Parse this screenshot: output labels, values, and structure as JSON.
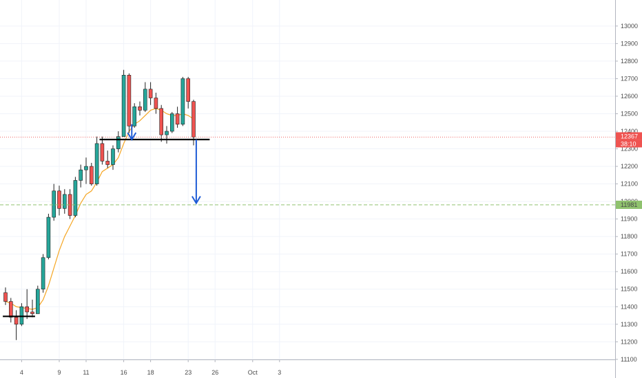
{
  "chart_data": {
    "type": "candlestick",
    "x_ticks": [
      {
        "label": "4",
        "index": 3
      },
      {
        "label": "9",
        "index": 10
      },
      {
        "label": "11",
        "index": 15
      },
      {
        "label": "16",
        "index": 22
      },
      {
        "label": "18",
        "index": 27
      },
      {
        "label": "23",
        "index": 34
      },
      {
        "label": "26",
        "index": 39
      },
      {
        "label": "Oct",
        "index": 46
      },
      {
        "label": "3",
        "index": 51
      }
    ],
    "y_ticks": [
      11100,
      11200,
      11300,
      11400,
      11500,
      11600,
      11700,
      11800,
      11900,
      12000,
      12100,
      12200,
      12300,
      12400,
      12500,
      12600,
      12700,
      12800,
      12900,
      13000
    ],
    "ylim": [
      11070,
      13070
    ],
    "candles": [
      {
        "o": 11480,
        "h": 11510,
        "l": 11410,
        "c": 11430
      },
      {
        "o": 11430,
        "h": 11450,
        "l": 11310,
        "c": 11340
      },
      {
        "o": 11340,
        "h": 11380,
        "l": 11210,
        "c": 11300
      },
      {
        "o": 11300,
        "h": 11420,
        "l": 11290,
        "c": 11400
      },
      {
        "o": 11400,
        "h": 11500,
        "l": 11330,
        "c": 11370
      },
      {
        "o": 11370,
        "h": 11440,
        "l": 11340,
        "c": 11360
      },
      {
        "o": 11360,
        "h": 11520,
        "l": 11360,
        "c": 11500
      },
      {
        "o": 11500,
        "h": 11700,
        "l": 11480,
        "c": 11680
      },
      {
        "o": 11680,
        "h": 11930,
        "l": 11670,
        "c": 11910
      },
      {
        "o": 11910,
        "h": 12100,
        "l": 11890,
        "c": 12060
      },
      {
        "o": 12060,
        "h": 12090,
        "l": 11920,
        "c": 11960
      },
      {
        "o": 11960,
        "h": 12070,
        "l": 11930,
        "c": 12040
      },
      {
        "o": 12040,
        "h": 12070,
        "l": 11900,
        "c": 11920
      },
      {
        "o": 11920,
        "h": 12140,
        "l": 11910,
        "c": 12120
      },
      {
        "o": 12120,
        "h": 12210,
        "l": 12080,
        "c": 12180
      },
      {
        "o": 12180,
        "h": 12250,
        "l": 12100,
        "c": 12200
      },
      {
        "o": 12200,
        "h": 12220,
        "l": 12090,
        "c": 12100
      },
      {
        "o": 12100,
        "h": 12370,
        "l": 12090,
        "c": 12330
      },
      {
        "o": 12330,
        "h": 12370,
        "l": 12210,
        "c": 12230
      },
      {
        "o": 12230,
        "h": 12290,
        "l": 12190,
        "c": 12210
      },
      {
        "o": 12210,
        "h": 12320,
        "l": 12180,
        "c": 12300
      },
      {
        "o": 12300,
        "h": 12400,
        "l": 12280,
        "c": 12370
      },
      {
        "o": 12370,
        "h": 12750,
        "l": 12370,
        "c": 12720
      },
      {
        "o": 12720,
        "h": 12730,
        "l": 12390,
        "c": 12430
      },
      {
        "o": 12430,
        "h": 12560,
        "l": 12420,
        "c": 12540
      },
      {
        "o": 12540,
        "h": 12570,
        "l": 12490,
        "c": 12520
      },
      {
        "o": 12520,
        "h": 12680,
        "l": 12510,
        "c": 12640
      },
      {
        "o": 12640,
        "h": 12680,
        "l": 12550,
        "c": 12590
      },
      {
        "o": 12590,
        "h": 12620,
        "l": 12500,
        "c": 12530
      },
      {
        "o": 12530,
        "h": 12550,
        "l": 12340,
        "c": 12380
      },
      {
        "o": 12380,
        "h": 12430,
        "l": 12330,
        "c": 12400
      },
      {
        "o": 12400,
        "h": 12510,
        "l": 12390,
        "c": 12500
      },
      {
        "o": 12500,
        "h": 12540,
        "l": 12420,
        "c": 12440
      },
      {
        "o": 12440,
        "h": 12710,
        "l": 12430,
        "c": 12700
      },
      {
        "o": 12700,
        "h": 12710,
        "l": 12530,
        "c": 12570
      },
      {
        "o": 12570,
        "h": 12580,
        "l": 12320,
        "c": 12367
      }
    ],
    "moving_average": [
      11430,
      11420,
      11400,
      11395,
      11390,
      11385,
      11395,
      11440,
      11520,
      11620,
      11720,
      11800,
      11860,
      11920,
      11990,
      12040,
      12060,
      12110,
      12170,
      12190,
      12210,
      12250,
      12330,
      12400,
      12440,
      12460,
      12490,
      12520,
      12530,
      12520,
      12500,
      12490,
      12490,
      12500,
      12490,
      12470
    ],
    "support_lines": [
      {
        "price": 11345,
        "from": -0.5,
        "to": 5.5
      },
      {
        "price": 12353,
        "from": 17.5,
        "to": 38
      }
    ],
    "arrows": [
      {
        "index": 23.5,
        "from": 12440,
        "to": 12353
      },
      {
        "index": 35.5,
        "from": 12353,
        "to": 11990
      }
    ],
    "target_level": 11981,
    "current_price": 12367,
    "price_tag": {
      "price": "12367",
      "timer": "38:10"
    },
    "target_tag": "11981",
    "colors": {
      "up": "#26a69a",
      "down": "#ef5350",
      "wick": "#1f1f1f",
      "ma": "#f5a623",
      "support": "#000000",
      "arrow": "#1e5bd6",
      "target": "#8fc26e",
      "price_line": "#ef5350",
      "grid": "#f0f3fa"
    }
  }
}
